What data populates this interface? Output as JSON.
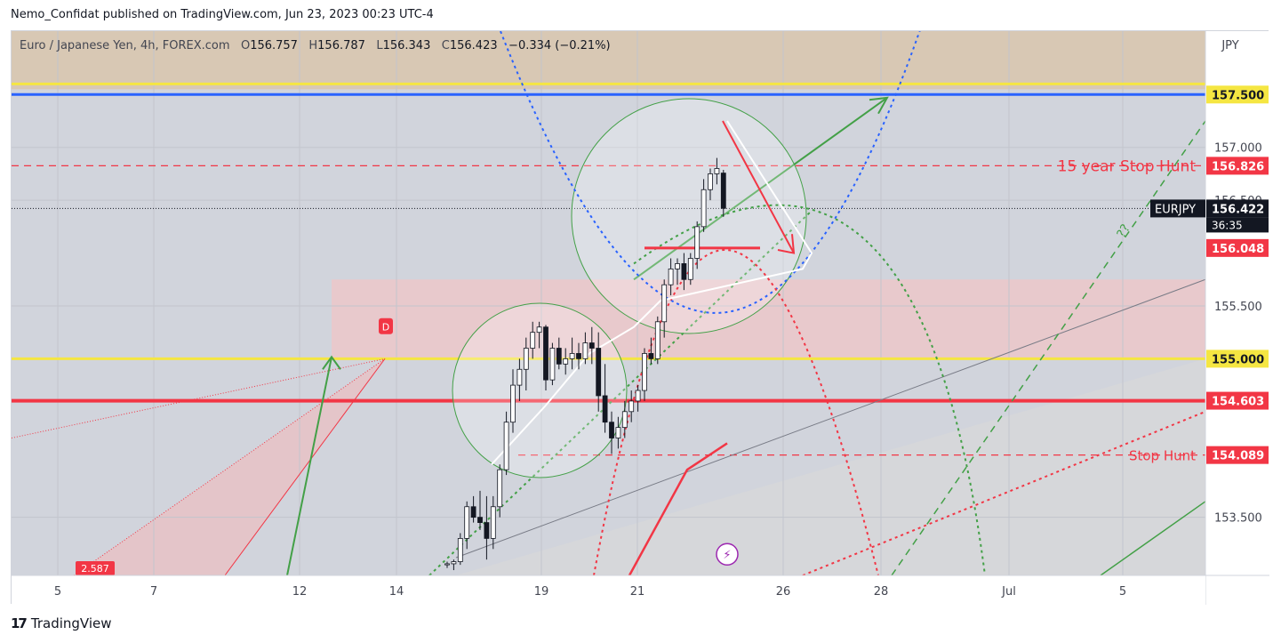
{
  "header": {
    "published": "Nemo_Confidat published on TradingView.com, Jun 23, 2023 00:23 UTC-4"
  },
  "legend": {
    "symbol_desc": "Euro / Japanese Yen, 4h, FOREX.com",
    "o_label": "O",
    "o_value": "156.757",
    "h_label": "H",
    "h_value": "156.787",
    "l_label": "L",
    "l_value": "156.343",
    "c_label": "C",
    "c_value": "156.423",
    "change": "−0.334 (−0.21%)"
  },
  "footer": {
    "brand": "TradingView"
  },
  "colors": {
    "up": "#ffffff",
    "down": "#131722",
    "red": "#f23645",
    "yellow": "#f5e642",
    "blue": "#2962ff",
    "green": "#43a047",
    "label_red": "#f23645"
  },
  "chart_data": {
    "type": "candlestick",
    "symbol": "EURJPY",
    "timeframe": "4h",
    "axis_currency": "JPY",
    "ylim": [
      152.95,
      158.1
    ],
    "y_ticks": [
      "157.000",
      "156.500",
      "155.500",
      "153.500"
    ],
    "y_tick_values": [
      157.0,
      156.5,
      155.5,
      153.5
    ],
    "x_tick_labels": [
      "5",
      "7",
      "12",
      "14",
      "19",
      "21",
      "26",
      "28",
      "Jul",
      "5"
    ],
    "price_labels": [
      {
        "text": "157.500",
        "value": 157.5,
        "style": "yellow"
      },
      {
        "text": "156.826",
        "value": 156.826,
        "style": "red"
      },
      {
        "text": "156.422",
        "value": 156.422,
        "style": "dark",
        "symbol": "EURJPY",
        "countdown": "36:35"
      },
      {
        "text": "156.048",
        "value": 156.048,
        "style": "red"
      },
      {
        "text": "155.000",
        "value": 155.0,
        "style": "yellow"
      },
      {
        "text": "154.603",
        "value": 154.603,
        "style": "red"
      },
      {
        "text": "154.089",
        "value": 154.089,
        "style": "red"
      }
    ],
    "annotations": [
      {
        "text": "15 year Stop Hunt",
        "value": 156.826
      },
      {
        "text": "Stop Hunt",
        "value": 154.089
      },
      {
        "text": "D"
      },
      {
        "text": "2.587"
      },
      {
        "text": "??"
      }
    ],
    "candles": [
      [
        153.05,
        153.08,
        153.02,
        153.06
      ],
      [
        153.06,
        153.1,
        153.0,
        153.08
      ],
      [
        153.08,
        153.35,
        153.05,
        153.3
      ],
      [
        153.3,
        153.65,
        153.2,
        153.6
      ],
      [
        153.6,
        153.7,
        153.45,
        153.5
      ],
      [
        153.5,
        153.75,
        153.38,
        153.45
      ],
      [
        153.45,
        153.7,
        153.1,
        153.3
      ],
      [
        153.3,
        153.7,
        153.2,
        153.6
      ],
      [
        153.6,
        154.0,
        153.5,
        153.95
      ],
      [
        153.95,
        154.5,
        153.9,
        154.4
      ],
      [
        154.4,
        154.9,
        154.3,
        154.75
      ],
      [
        154.75,
        155.0,
        154.6,
        154.9
      ],
      [
        154.9,
        155.2,
        154.7,
        155.1
      ],
      [
        155.1,
        155.35,
        155.0,
        155.25
      ],
      [
        155.25,
        155.35,
        155.1,
        155.3
      ],
      [
        155.3,
        155.32,
        154.7,
        154.8
      ],
      [
        154.8,
        155.15,
        154.75,
        155.1
      ],
      [
        155.1,
        155.2,
        154.9,
        154.95
      ],
      [
        154.95,
        155.1,
        154.85,
        155.0
      ],
      [
        155.0,
        155.2,
        154.9,
        155.05
      ],
      [
        155.05,
        155.15,
        154.9,
        155.0
      ],
      [
        155.0,
        155.25,
        154.95,
        155.15
      ],
      [
        155.15,
        155.3,
        154.95,
        155.1
      ],
      [
        155.1,
        155.25,
        154.5,
        154.65
      ],
      [
        154.65,
        154.95,
        154.3,
        154.4
      ],
      [
        154.4,
        154.5,
        154.1,
        154.25
      ],
      [
        154.25,
        154.45,
        154.15,
        154.35
      ],
      [
        154.35,
        154.6,
        154.25,
        154.5
      ],
      [
        154.5,
        154.7,
        154.4,
        154.6
      ],
      [
        154.6,
        154.75,
        154.5,
        154.7
      ],
      [
        154.7,
        155.1,
        154.6,
        155.05
      ],
      [
        155.05,
        155.2,
        154.95,
        155.0
      ],
      [
        155.0,
        155.4,
        154.95,
        155.35
      ],
      [
        155.35,
        155.75,
        155.2,
        155.7
      ],
      [
        155.7,
        155.95,
        155.6,
        155.85
      ],
      [
        155.85,
        155.95,
        155.7,
        155.9
      ],
      [
        155.9,
        156.0,
        155.65,
        155.75
      ],
      [
        155.75,
        156.0,
        155.7,
        155.95
      ],
      [
        155.95,
        156.3,
        155.85,
        156.25
      ],
      [
        156.25,
        156.7,
        156.2,
        156.6
      ],
      [
        156.6,
        156.8,
        156.5,
        156.75
      ],
      [
        156.75,
        156.9,
        156.65,
        156.8
      ],
      [
        156.757,
        156.787,
        156.343,
        156.423
      ]
    ]
  }
}
